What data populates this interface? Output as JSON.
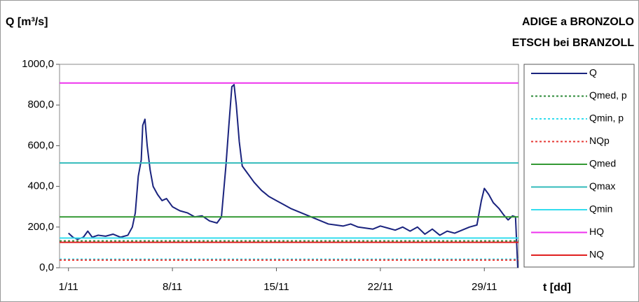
{
  "chart_data": {
    "type": "line",
    "title": "ADIGE a BRONZOLO",
    "subtitle": "ETSCH bei BRANZOLL",
    "y_label": "Q [m³/s]",
    "x_label": "t [dd]",
    "xlim": [
      0.4,
      31.3
    ],
    "xticks": [
      {
        "value": 1,
        "label": "1/11"
      },
      {
        "value": 8,
        "label": "8/11"
      },
      {
        "value": 15,
        "label": "15/11"
      },
      {
        "value": 22,
        "label": "22/11"
      },
      {
        "value": 29,
        "label": "29/11"
      }
    ],
    "ylim": [
      0,
      1000
    ],
    "yticks": [
      {
        "value": 0,
        "label": "0,0"
      },
      {
        "value": 200,
        "label": "200,0"
      },
      {
        "value": 400,
        "label": "400,0"
      },
      {
        "value": 600,
        "label": "600,0"
      },
      {
        "value": 800,
        "label": "800,0"
      },
      {
        "value": 1000,
        "label": "1000,0"
      }
    ],
    "legend": "right",
    "x": [
      1.0,
      1.3,
      1.6,
      2.0,
      2.3,
      2.6,
      3.0,
      3.5,
      4.0,
      4.5,
      5.0,
      5.3,
      5.5,
      5.7,
      5.9,
      6.0,
      6.15,
      6.3,
      6.5,
      6.7,
      7.0,
      7.3,
      7.6,
      8.0,
      8.5,
      9.0,
      9.5,
      10.0,
      10.5,
      11.0,
      11.3,
      11.6,
      11.8,
      12.0,
      12.15,
      12.3,
      12.5,
      12.7,
      13.0,
      13.5,
      14.0,
      14.5,
      15.0,
      15.5,
      16.0,
      16.5,
      17.0,
      17.5,
      18.0,
      18.5,
      19.0,
      19.5,
      20.0,
      20.5,
      21.0,
      21.5,
      22.0,
      22.5,
      23.0,
      23.5,
      24.0,
      24.5,
      25.0,
      25.5,
      26.0,
      26.5,
      27.0,
      27.5,
      28.0,
      28.5,
      28.8,
      29.0,
      29.3,
      29.6,
      30.0,
      30.3,
      30.6,
      30.9,
      31.1,
      31.25
    ],
    "series": [
      {
        "name": "Q",
        "color": "#1a237e",
        "style": "solid",
        "values": [
          170,
          150,
          140,
          150,
          180,
          150,
          160,
          155,
          165,
          150,
          160,
          200,
          270,
          450,
          530,
          700,
          730,
          600,
          480,
          400,
          360,
          330,
          340,
          300,
          280,
          270,
          250,
          255,
          230,
          220,
          250,
          500,
          700,
          890,
          900,
          800,
          620,
          500,
          470,
          420,
          380,
          350,
          330,
          310,
          290,
          275,
          260,
          245,
          230,
          215,
          210,
          205,
          215,
          200,
          195,
          190,
          205,
          195,
          185,
          200,
          180,
          200,
          165,
          190,
          160,
          180,
          170,
          185,
          200,
          210,
          330,
          390,
          360,
          320,
          290,
          260,
          235,
          255,
          250,
          0
        ]
      },
      {
        "name": "Qmed, p",
        "color": "#2e8b3a",
        "style": "dotted",
        "value": 132
      },
      {
        "name": "Qmin, p",
        "color": "#33ddee",
        "style": "dotted",
        "value": 42
      },
      {
        "name": "NQp",
        "color": "#e53935",
        "style": "dotted",
        "value": 38
      },
      {
        "name": "Qmed",
        "color": "#339933",
        "style": "solid",
        "value": 250
      },
      {
        "name": "Qmax",
        "color": "#33bbbb",
        "style": "solid",
        "value": 515
      },
      {
        "name": "Qmin",
        "color": "#33ddee",
        "style": "solid",
        "value": 146
      },
      {
        "name": "HQ",
        "color": "#ee33ee",
        "style": "solid",
        "value": 908
      },
      {
        "name": "NQ",
        "color": "#e02020",
        "style": "solid",
        "value": 125
      }
    ]
  }
}
